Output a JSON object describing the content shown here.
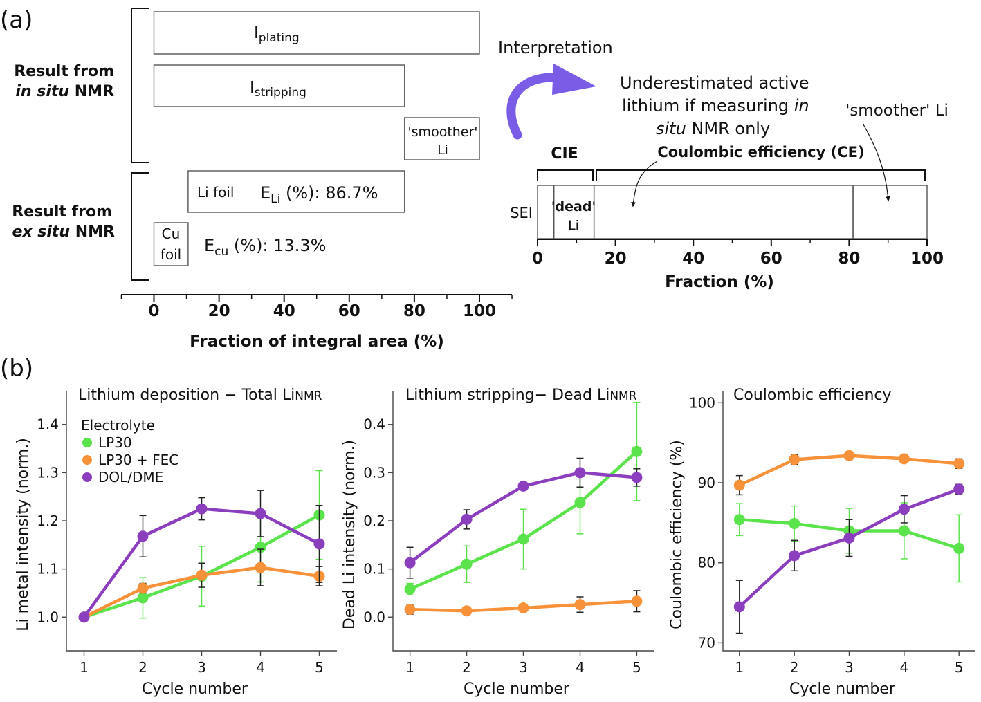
{
  "panel_labels": {
    "a": "(a)",
    "b": "(b)"
  },
  "interpretation_label": "Interpretation",
  "colors": {
    "plating": "#b3cff0",
    "stripping": "#d2ee91",
    "smoother": "#f4f262",
    "li_foil": "#b7b7b7",
    "cu_foil": "#e8737f",
    "sei": "#8fd7f2",
    "dead": "#e06b7a",
    "active": "#c9c9c9",
    "smoother_right": "#eef060",
    "LP30": "#5be34b",
    "LP30 + FEC": "#f7923b",
    "DOL/DME": "#8b3fbf",
    "arrow": "#7b5ce6"
  },
  "chart_data": [
    {
      "type": "bar",
      "orientation": "horizontal",
      "xlabel": "Fraction of integral area (%)",
      "xlim": [
        -10,
        110
      ],
      "xticks": [
        0,
        20,
        40,
        60,
        80,
        100
      ],
      "groups": [
        {
          "label_a": "Result from",
          "label_b": "in situ",
          "label_c": "NMR"
        },
        {
          "label_a": "Result from",
          "label_b": "ex situ",
          "label_c": "NMR"
        }
      ],
      "bars": [
        {
          "key": "plating",
          "start": 0,
          "end": 100,
          "label": "I",
          "sub": "plating",
          "color": "plating"
        },
        {
          "key": "stripping",
          "start": 0,
          "end": 77,
          "label": "I",
          "sub": "stripping",
          "color": "stripping"
        },
        {
          "key": "smoother",
          "start": 77,
          "end": 100,
          "label": "'smoother'",
          "label2": "Li",
          "color": "smoother"
        },
        {
          "key": "li_foil",
          "start": 10.5,
          "end": 77,
          "label": "Li foil",
          "color": "li_foil"
        },
        {
          "key": "cu_foil",
          "start": 0,
          "end": 10.5,
          "label": "Cu",
          "label2": "foil",
          "color": "cu_foil"
        }
      ],
      "annotations": {
        "e_li": {
          "prefix": "E",
          "sub": "Li",
          "text": " (%): 86.7%"
        },
        "e_cu": {
          "prefix": "E",
          "sub": "cu",
          "text": " (%): 13.3%"
        }
      }
    },
    {
      "type": "bar",
      "orientation": "stacked-horizontal",
      "xlabel": "Fraction (%)",
      "xlim": [
        0,
        100
      ],
      "xticks": [
        0,
        20,
        40,
        60,
        80,
        100
      ],
      "segments": [
        {
          "key": "sei",
          "start": 0,
          "end": 4.2,
          "color": "sei"
        },
        {
          "key": "dead",
          "start": 4.2,
          "end": 14.5,
          "label": "'dead'",
          "label2": "Li",
          "color": "dead"
        },
        {
          "key": "active",
          "start": 14.5,
          "end": 81,
          "color": "active"
        },
        {
          "key": "smoother",
          "start": 81,
          "end": 100,
          "color": "smoother_right"
        }
      ],
      "sei_label": "SEI",
      "cie_label": "CIE",
      "ce_label": "Coulombic efficiency (CE)",
      "note_lines": [
        "Underestimated active",
        "lithium if measuring ",
        "in",
        "situ",
        " NMR only"
      ],
      "smoother_label": "'smoother' Li"
    },
    {
      "type": "line",
      "title": "Lithium deposition − Total Li",
      "title_sub": "NMR",
      "xlabel": "Cycle number",
      "ylabel": "Li metal intensity (norm.)",
      "legend_title": "Electrolyte",
      "legend": "top-left",
      "x": [
        1,
        2,
        3,
        4,
        5
      ],
      "xlim": [
        0.7,
        5.3
      ],
      "ylim": [
        0.93,
        1.47
      ],
      "yticks": [
        1.0,
        1.1,
        1.2,
        1.3,
        1.4
      ],
      "ytick_labels": [
        "1.0",
        "1.1",
        "1.2",
        "1.3",
        "1.4"
      ],
      "series": [
        {
          "name": "LP30",
          "values": [
            1.0,
            1.04,
            1.085,
            1.145,
            1.212
          ],
          "err": [
            0,
            0.042,
            0.062,
            0.072,
            0.092
          ]
        },
        {
          "name": "LP30 + FEC",
          "values": [
            1.0,
            1.06,
            1.087,
            1.103,
            1.085
          ],
          "err": [
            0,
            0.01,
            0.025,
            0.038,
            0.02
          ]
        },
        {
          "name": "DOL/DME",
          "values": [
            1.0,
            1.168,
            1.225,
            1.215,
            1.152
          ],
          "err": [
            0,
            0.043,
            0.023,
            0.048,
            0.08
          ]
        }
      ]
    },
    {
      "type": "line",
      "title": "Lithium stripping− Dead Li",
      "title_sub": "NMR",
      "xlabel": "Cycle number",
      "ylabel": "Dead Li intensity (norm.)",
      "x": [
        1,
        2,
        3,
        4,
        5
      ],
      "xlim": [
        0.7,
        5.3
      ],
      "ylim": [
        -0.07,
        0.47
      ],
      "yticks": [
        0.0,
        0.1,
        0.2,
        0.3,
        0.4
      ],
      "ytick_labels": [
        "0.0",
        "0.1",
        "0.2",
        "0.3",
        "0.4"
      ],
      "series": [
        {
          "name": "LP30",
          "values": [
            0.058,
            0.11,
            0.162,
            0.238,
            0.344
          ],
          "err": [
            0.012,
            0.038,
            0.062,
            0.065,
            0.102
          ]
        },
        {
          "name": "LP30 + FEC",
          "values": [
            0.016,
            0.013,
            0.019,
            0.026,
            0.033
          ],
          "err": [
            0.01,
            0.005,
            0.005,
            0.016,
            0.022
          ]
        },
        {
          "name": "DOL/DME",
          "values": [
            0.113,
            0.203,
            0.272,
            0.3,
            0.29
          ],
          "err": [
            0.032,
            0.02,
            0.008,
            0.03,
            0.018
          ]
        }
      ]
    },
    {
      "type": "line",
      "title": "Coulombic efficiency",
      "xlabel": "Cycle number",
      "ylabel": "Coulombic efficiency (%)",
      "x": [
        1,
        2,
        3,
        4,
        5
      ],
      "xlim": [
        0.7,
        5.3
      ],
      "ylim": [
        69,
        101.5
      ],
      "yticks": [
        70,
        80,
        90,
        100
      ],
      "ytick_labels": [
        "70",
        "80",
        "90",
        "100"
      ],
      "series": [
        {
          "name": "LP30",
          "values": [
            85.4,
            84.9,
            84.0,
            84.0,
            81.8
          ],
          "err": [
            2.0,
            2.2,
            2.8,
            3.5,
            4.2
          ]
        },
        {
          "name": "LP30 + FEC",
          "values": [
            89.7,
            92.9,
            93.4,
            93.0,
            92.4
          ],
          "err": [
            1.2,
            0.6,
            0.5,
            0.5,
            0.6
          ]
        },
        {
          "name": "DOL/DME",
          "values": [
            74.5,
            80.9,
            83.1,
            86.7,
            89.2
          ],
          "err": [
            3.3,
            1.9,
            2.3,
            1.7,
            0.6
          ]
        }
      ]
    }
  ]
}
